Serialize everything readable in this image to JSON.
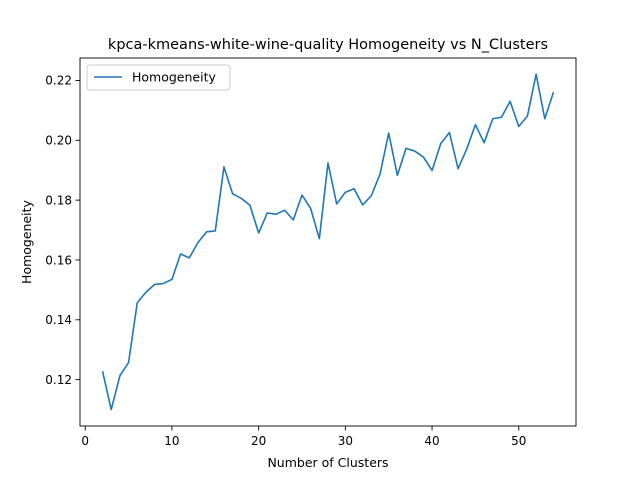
{
  "chart_data": {
    "type": "line",
    "title": "kpca-kmeans-white-wine-quality Homogeneity vs N_Clusters",
    "xlabel": "Number of Clusters",
    "ylabel": "Homogeneity",
    "xlim": [
      -0.6,
      56.6
    ],
    "ylim": [
      0.1045,
      0.2275
    ],
    "xticks": [
      0,
      10,
      20,
      30,
      40,
      50
    ],
    "yticks": [
      0.12,
      0.14,
      0.16,
      0.18,
      0.2,
      0.22
    ],
    "ytick_labels": [
      "0.12",
      "0.14",
      "0.16",
      "0.18",
      "0.20",
      "0.22"
    ],
    "grid": false,
    "legend_position": "top-left",
    "series": [
      {
        "name": "Homogeneity",
        "color": "#1f77b4",
        "x": [
          2,
          3,
          4,
          5,
          6,
          7,
          8,
          9,
          10,
          11,
          12,
          13,
          14,
          15,
          16,
          17,
          18,
          19,
          20,
          21,
          22,
          23,
          24,
          25,
          26,
          27,
          28,
          29,
          30,
          31,
          32,
          33,
          34,
          35,
          36,
          37,
          38,
          39,
          40,
          41,
          42,
          43,
          44,
          45,
          46,
          47,
          48,
          49,
          50,
          51,
          52,
          53,
          54
        ],
        "values": [
          0.1228,
          0.11,
          0.1213,
          0.1257,
          0.1457,
          0.1492,
          0.1518,
          0.1521,
          0.1535,
          0.162,
          0.1607,
          0.1658,
          0.1694,
          0.1697,
          0.1911,
          0.1821,
          0.1806,
          0.1783,
          0.169,
          0.1757,
          0.1753,
          0.1766,
          0.1734,
          0.1817,
          0.1772,
          0.1671,
          0.1924,
          0.1787,
          0.1826,
          0.1838,
          0.1784,
          0.1815,
          0.1887,
          0.2024,
          0.1883,
          0.1973,
          0.1964,
          0.1944,
          0.1899,
          0.1989,
          0.2026,
          0.1905,
          0.1971,
          0.2052,
          0.1992,
          0.2072,
          0.2077,
          0.213,
          0.2046,
          0.2081,
          0.2221,
          0.2072,
          0.2161
        ]
      }
    ]
  }
}
